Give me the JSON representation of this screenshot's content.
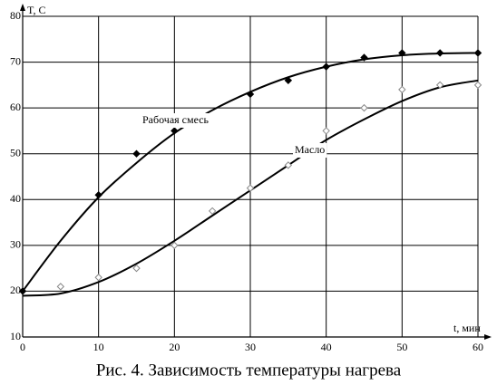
{
  "chart_data": {
    "type": "scatter",
    "caption": "Рис. 4. Зависимость температуры нагрева",
    "y_label": "T, C",
    "x_label": "t, мин",
    "xlim": [
      0,
      60
    ],
    "xticks": [
      0,
      10,
      20,
      30,
      40,
      50,
      60
    ],
    "ylim": [
      10,
      80
    ],
    "yticks": [
      10,
      20,
      30,
      40,
      50,
      60,
      70,
      80
    ],
    "grid": true,
    "series": [
      {
        "name": "Рабочая смесь",
        "color": "#000000",
        "marker": "filled-diamond",
        "x": [
          0,
          10,
          15,
          20,
          30,
          35,
          40,
          45,
          50,
          55,
          60
        ],
        "values": [
          20,
          41,
          50,
          55,
          63,
          66,
          69,
          71,
          72,
          72,
          72
        ],
        "fit": {
          "x": [
            0,
            5,
            10,
            15,
            20,
            25,
            30,
            35,
            40,
            45,
            50,
            55,
            60
          ],
          "values": [
            20,
            31,
            40.5,
            48,
            54.5,
            59.5,
            63.5,
            66.7,
            69,
            70.6,
            71.5,
            71.9,
            72
          ]
        }
      },
      {
        "name": "Масло",
        "color": "#888888",
        "marker": "open-diamond",
        "x": [
          5,
          10,
          15,
          20,
          25,
          30,
          35,
          40,
          45,
          50,
          55,
          60
        ],
        "values": [
          21,
          23,
          25,
          30,
          37.5,
          42.5,
          47.5,
          55,
          60,
          64,
          65,
          65
        ],
        "fit": {
          "x": [
            0,
            5,
            10,
            15,
            20,
            25,
            30,
            35,
            40,
            45,
            50,
            55,
            60
          ],
          "values": [
            19,
            19.5,
            22,
            26,
            31,
            36.5,
            42,
            47.5,
            53,
            57.5,
            61.5,
            64.5,
            66
          ]
        }
      }
    ]
  }
}
